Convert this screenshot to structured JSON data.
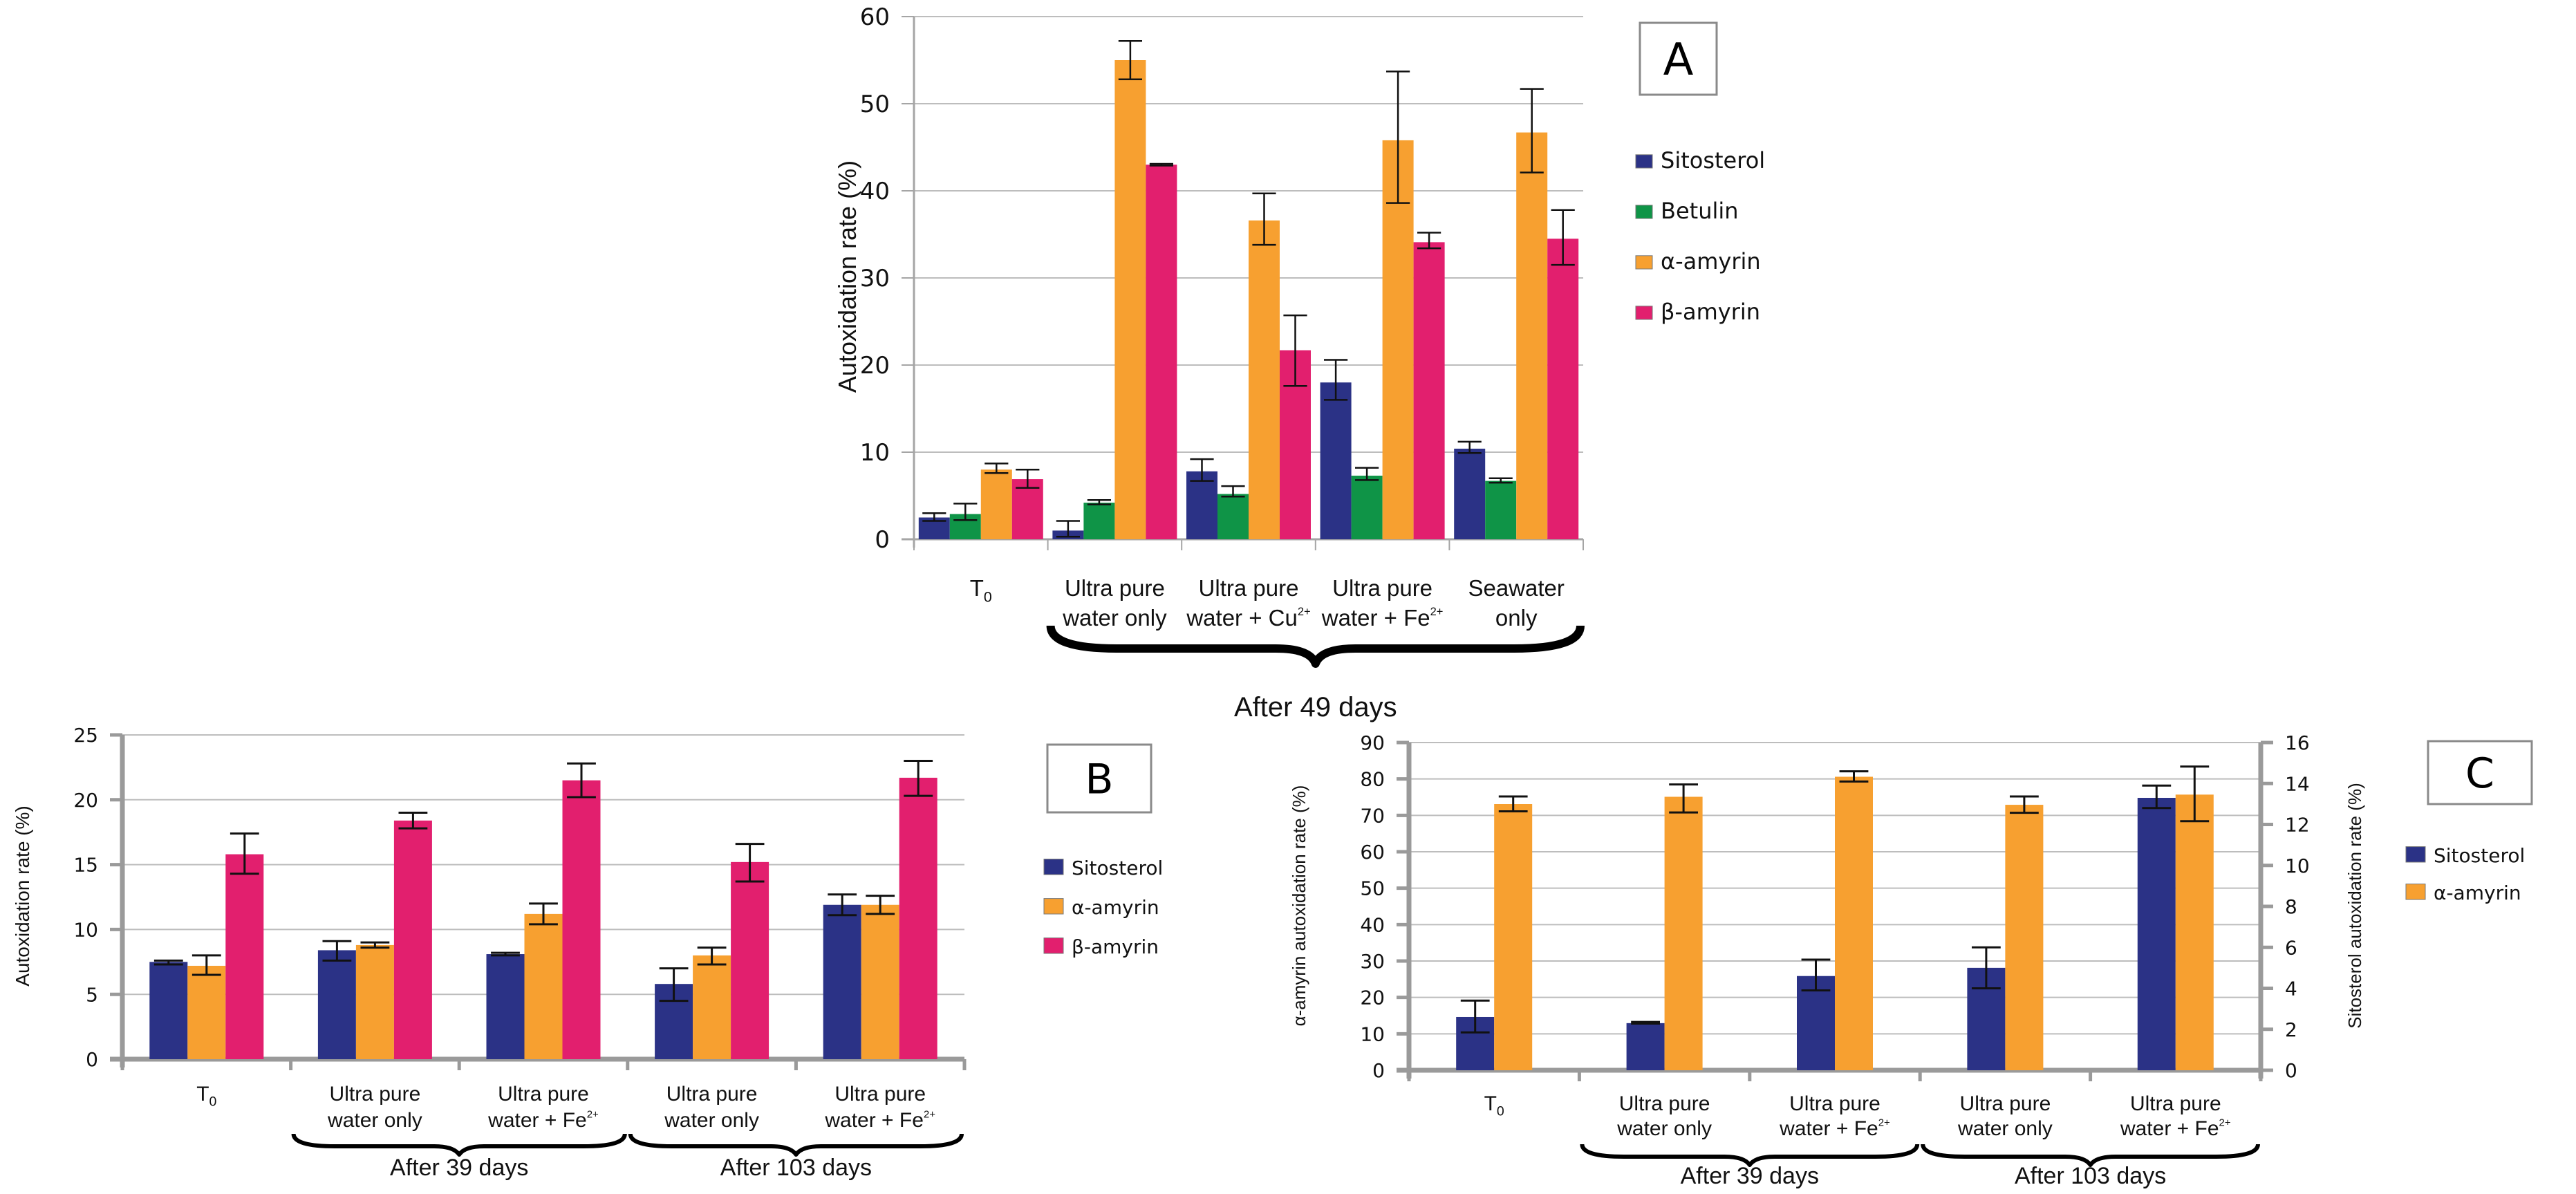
{
  "chart_data": [
    {
      "id": "A",
      "type": "bar",
      "panel_label": "A",
      "title": "",
      "ylabel": "Autoxidation rate (%)",
      "xlabel": "",
      "ylim": [
        0,
        60
      ],
      "yticks": [
        0,
        10,
        20,
        30,
        40,
        50,
        60
      ],
      "grid": true,
      "legend_position": "right",
      "categories": [
        "T0",
        "Ultra pure water only",
        "Ultra pure water + Cu2+",
        "Ultra pure water + Fe2+",
        "Seawater only"
      ],
      "category_lines": [
        [
          {
            "t": "T"
          },
          {
            "t": "0",
            "sub": true
          }
        ],
        [
          {
            "t": "Ultra pure"
          }
        ],
        [
          {
            "t": "Ultra pure"
          }
        ],
        [
          {
            "t": "Ultra pure"
          }
        ],
        [
          {
            "t": "Seawater"
          }
        ]
      ],
      "category_lines2": [
        [],
        [
          {
            "t": "water only"
          }
        ],
        [
          {
            "t": "water + Cu"
          },
          {
            "t": "2+",
            "sup": true
          }
        ],
        [
          {
            "t": "water + Fe"
          },
          {
            "t": "2+",
            "sup": true
          }
        ],
        [
          {
            "t": "only"
          }
        ]
      ],
      "groups": [
        {
          "label": "After 49 days",
          "from": 1,
          "to": 4
        }
      ],
      "series": [
        {
          "name": "Sitosterol",
          "color": "#2b3286",
          "values": [
            2.5,
            1.0,
            7.8,
            18.0,
            10.4
          ],
          "err_low": [
            2.1,
            0.3,
            6.7,
            16.0,
            9.9
          ],
          "err_high": [
            3.0,
            2.1,
            9.2,
            20.6,
            11.2
          ]
        },
        {
          "name": "Betulin",
          "color": "#0f9447",
          "values": [
            2.9,
            4.2,
            5.2,
            7.3,
            6.7
          ],
          "err_low": [
            2.2,
            4.0,
            4.9,
            6.8,
            6.5
          ],
          "err_high": [
            4.1,
            4.5,
            6.1,
            8.2,
            7.0
          ]
        },
        {
          "name": "α-amyrin",
          "color": "#f7a030",
          "values": [
            8.0,
            55.0,
            36.6,
            45.8,
            46.7
          ],
          "err_low": [
            7.6,
            52.8,
            33.8,
            38.6,
            42.1
          ],
          "err_high": [
            8.7,
            57.2,
            39.7,
            53.7,
            51.7
          ]
        },
        {
          "name": "β-amyrin",
          "color": "#e21f6e",
          "values": [
            6.9,
            43.0,
            21.7,
            34.1,
            34.5
          ],
          "err_low": [
            5.9,
            42.9,
            17.6,
            33.4,
            31.5
          ],
          "err_high": [
            8.0,
            43.1,
            25.7,
            35.2,
            37.8
          ]
        }
      ]
    },
    {
      "id": "B",
      "type": "bar",
      "panel_label": "B",
      "title": "",
      "ylabel": "Autoxidation rate (%)",
      "xlabel": "",
      "ylim": [
        0,
        25
      ],
      "yticks": [
        0,
        5,
        10,
        15,
        20,
        25
      ],
      "grid": true,
      "legend_position": "right",
      "categories": [
        "T0",
        "Ultra pure water only",
        "Ultra pure water + Fe2+",
        "Ultra pure water only",
        "Ultra pure water + Fe2+"
      ],
      "category_lines": [
        [
          {
            "t": "T"
          },
          {
            "t": "0",
            "sub": true
          }
        ],
        [
          {
            "t": "Ultra pure"
          }
        ],
        [
          {
            "t": "Ultra pure"
          }
        ],
        [
          {
            "t": "Ultra pure"
          }
        ],
        [
          {
            "t": "Ultra pure"
          }
        ]
      ],
      "category_lines2": [
        [],
        [
          {
            "t": "water only"
          }
        ],
        [
          {
            "t": "water + Fe"
          },
          {
            "t": "2+",
            "sup": true
          }
        ],
        [
          {
            "t": "water only"
          }
        ],
        [
          {
            "t": "water + Fe"
          },
          {
            "t": "2+",
            "sup": true
          }
        ]
      ],
      "groups": [
        {
          "label": "After 39 days",
          "from": 1,
          "to": 2
        },
        {
          "label": "After 103 days",
          "from": 3,
          "to": 4
        }
      ],
      "series": [
        {
          "name": "Sitosterol",
          "color": "#2b3286",
          "values": [
            7.5,
            8.4,
            8.1,
            5.8,
            11.9
          ],
          "err_low": [
            7.3,
            7.6,
            8.0,
            4.5,
            11.1
          ],
          "err_high": [
            7.6,
            9.1,
            8.2,
            7.0,
            12.7
          ]
        },
        {
          "name": "α-amyrin",
          "color": "#f7a030",
          "values": [
            7.2,
            8.8,
            11.2,
            8.0,
            11.9
          ],
          "err_low": [
            6.5,
            8.6,
            10.4,
            7.3,
            11.2
          ],
          "err_high": [
            8.0,
            9.0,
            12.0,
            8.6,
            12.6
          ]
        },
        {
          "name": "β-amyrin",
          "color": "#e21f6e",
          "values": [
            15.8,
            18.4,
            21.5,
            15.2,
            21.7
          ],
          "err_low": [
            14.3,
            17.8,
            20.2,
            13.7,
            20.3
          ],
          "err_high": [
            17.4,
            19.0,
            22.8,
            16.6,
            23.0
          ]
        }
      ]
    },
    {
      "id": "C",
      "type": "bar",
      "panel_label": "C",
      "title": "",
      "ylabel": "α-amyrin autoxidation rate (%)",
      "ylabel_right": "Sitosterol autoxidation rate (%)",
      "xlabel": "",
      "ylim": [
        0,
        90
      ],
      "yticks": [
        0,
        10,
        20,
        30,
        40,
        50,
        60,
        70,
        80,
        90
      ],
      "ylim_right": [
        0,
        16
      ],
      "yticks_right": [
        0,
        2,
        4,
        6,
        8,
        10,
        12,
        14,
        16
      ],
      "grid": true,
      "legend_position": "right",
      "categories": [
        "T0",
        "Ultra pure water only",
        "Ultra pure water + Fe2+",
        "Ultra pure water only",
        "Ultra pure water + Fe2+"
      ],
      "category_lines": [
        [
          {
            "t": "T"
          },
          {
            "t": "0",
            "sub": true
          }
        ],
        [
          {
            "t": "Ultra pure"
          }
        ],
        [
          {
            "t": "Ultra pure"
          }
        ],
        [
          {
            "t": "Ultra pure"
          }
        ],
        [
          {
            "t": "Ultra pure"
          }
        ]
      ],
      "category_lines2": [
        [],
        [
          {
            "t": "water only"
          }
        ],
        [
          {
            "t": "water + Fe"
          },
          {
            "t": "2+",
            "sup": true
          }
        ],
        [
          {
            "t": "water only"
          }
        ],
        [
          {
            "t": "water + Fe"
          },
          {
            "t": "2+",
            "sup": true
          }
        ]
      ],
      "groups": [
        {
          "label": "After 39 days",
          "from": 1,
          "to": 2
        },
        {
          "label": "After 103 days",
          "from": 3,
          "to": 4
        }
      ],
      "series": [
        {
          "name": "Sitosterol",
          "axis": "right",
          "color": "#2b3286",
          "values": [
            2.6,
            2.3,
            4.6,
            5.0,
            13.3
          ],
          "err_low": [
            1.85,
            2.28,
            3.9,
            4.0,
            12.8
          ],
          "err_high": [
            3.4,
            2.36,
            5.4,
            6.0,
            13.9
          ]
        },
        {
          "name": "α-amyrin",
          "axis": "left",
          "color": "#f7a030",
          "values": [
            73.1,
            75.1,
            80.6,
            72.9,
            75.7
          ],
          "err_low": [
            71.1,
            70.8,
            79.3,
            70.7,
            68.4
          ],
          "err_high": [
            75.2,
            78.5,
            82.1,
            75.2,
            83.4
          ]
        }
      ]
    }
  ]
}
